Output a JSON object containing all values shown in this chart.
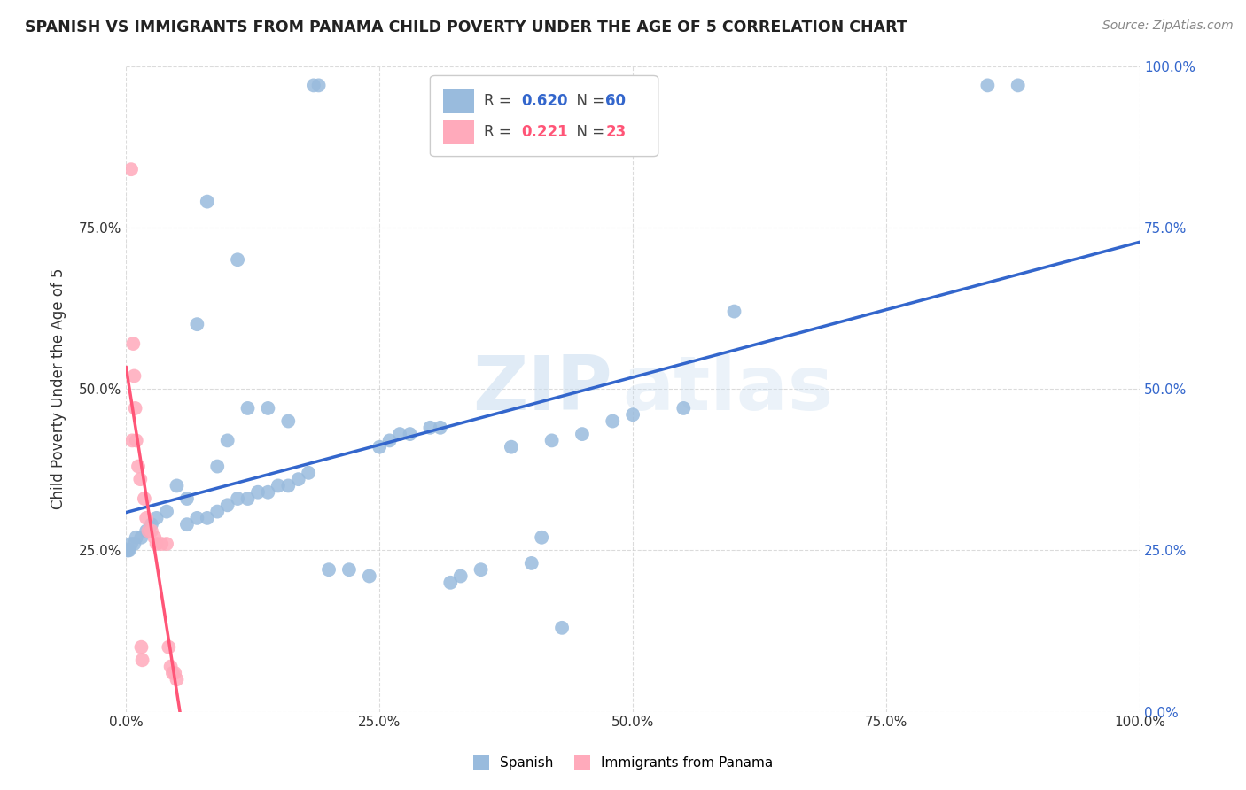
{
  "title": "SPANISH VS IMMIGRANTS FROM PANAMA CHILD POVERTY UNDER THE AGE OF 5 CORRELATION CHART",
  "source": "Source: ZipAtlas.com",
  "ylabel": "Child Poverty Under the Age of 5",
  "watermark_zip": "ZIP",
  "watermark_atlas": "atlas",
  "blue_R": 0.62,
  "blue_N": 60,
  "pink_R": 0.221,
  "pink_N": 23,
  "blue_color": "#99BBDD",
  "pink_color": "#FFAABB",
  "line_blue": "#3366CC",
  "line_pink": "#FF5577",
  "line_pink_dash": "#DDAAAA",
  "background": "#FFFFFF",
  "grid_color": "#CCCCCC",
  "blue_scatter_x": [
    0.185,
    0.19,
    0.08,
    0.11,
    0.07,
    0.12,
    0.14,
    0.16,
    0.1,
    0.09,
    0.05,
    0.06,
    0.04,
    0.03,
    0.025,
    0.02,
    0.015,
    0.01,
    0.008,
    0.005,
    0.003,
    0.002,
    0.001,
    0.18,
    0.17,
    0.16,
    0.15,
    0.14,
    0.13,
    0.12,
    0.11,
    0.1,
    0.09,
    0.08,
    0.07,
    0.06,
    0.3,
    0.31,
    0.28,
    0.27,
    0.26,
    0.25,
    0.55,
    0.6,
    0.5,
    0.48,
    0.45,
    0.85,
    0.88,
    0.42,
    0.38,
    0.35,
    0.33,
    0.32,
    0.2,
    0.22,
    0.24,
    0.4,
    0.41,
    0.43
  ],
  "blue_scatter_y": [
    0.97,
    0.97,
    0.79,
    0.7,
    0.6,
    0.47,
    0.47,
    0.45,
    0.42,
    0.38,
    0.35,
    0.33,
    0.31,
    0.3,
    0.29,
    0.28,
    0.27,
    0.27,
    0.26,
    0.26,
    0.25,
    0.25,
    0.25,
    0.37,
    0.36,
    0.35,
    0.35,
    0.34,
    0.34,
    0.33,
    0.33,
    0.32,
    0.31,
    0.3,
    0.3,
    0.29,
    0.44,
    0.44,
    0.43,
    0.43,
    0.42,
    0.41,
    0.47,
    0.62,
    0.46,
    0.45,
    0.43,
    0.97,
    0.97,
    0.42,
    0.41,
    0.22,
    0.21,
    0.2,
    0.22,
    0.22,
    0.21,
    0.23,
    0.27,
    0.13
  ],
  "pink_scatter_x": [
    0.005,
    0.006,
    0.007,
    0.008,
    0.009,
    0.01,
    0.012,
    0.014,
    0.015,
    0.016,
    0.018,
    0.02,
    0.022,
    0.025,
    0.028,
    0.03,
    0.035,
    0.04,
    0.042,
    0.044,
    0.046,
    0.048,
    0.05
  ],
  "pink_scatter_y": [
    0.84,
    0.42,
    0.57,
    0.52,
    0.47,
    0.42,
    0.38,
    0.36,
    0.1,
    0.08,
    0.33,
    0.3,
    0.28,
    0.28,
    0.27,
    0.26,
    0.26,
    0.26,
    0.1,
    0.07,
    0.06,
    0.06,
    0.05
  ]
}
